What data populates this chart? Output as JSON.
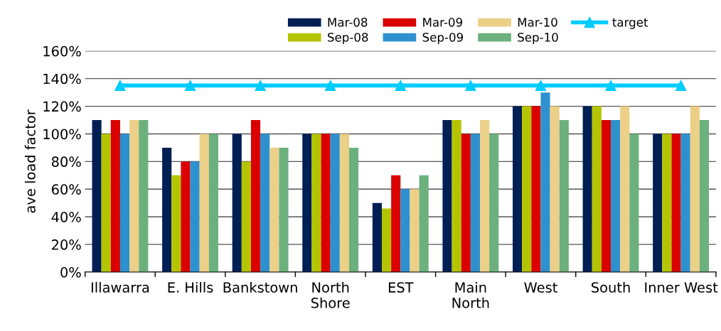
{
  "chart_data": {
    "type": "bar",
    "ylabel": "ave load factor",
    "categories": [
      "Illawarra",
      "E. Hills",
      "Bankstown",
      "North\nShore",
      "EST",
      "Main\nNorth",
      "West",
      "South",
      "Inner West"
    ],
    "series": [
      {
        "name": "Mar-08",
        "color": "#001f54",
        "values": [
          110,
          90,
          100,
          100,
          50,
          110,
          120,
          120,
          100
        ]
      },
      {
        "name": "Sep-08",
        "color": "#b5c400",
        "values": [
          100,
          70,
          80,
          100,
          46,
          110,
          120,
          120,
          100
        ]
      },
      {
        "name": "Mar-09",
        "color": "#db0000",
        "values": [
          110,
          80,
          110,
          100,
          70,
          100,
          120,
          110,
          100
        ]
      },
      {
        "name": "Sep-09",
        "color": "#2e91cf",
        "values": [
          100,
          80,
          100,
          100,
          60,
          100,
          130,
          110,
          100
        ]
      },
      {
        "name": "Mar-10",
        "color": "#ecd087",
        "values": [
          110,
          100,
          90,
          100,
          60,
          110,
          120,
          120,
          120
        ]
      },
      {
        "name": "Sep-10",
        "color": "#6cb07e",
        "values": [
          110,
          100,
          90,
          90,
          70,
          100,
          110,
          100,
          110
        ]
      },
      {
        "name": "target",
        "type": "line",
        "color": "#00ccff",
        "marker": "triangle",
        "values": [
          135,
          135,
          135,
          135,
          135,
          135,
          135,
          135,
          135
        ]
      }
    ],
    "ylim": [
      0,
      160
    ],
    "yticks": [
      {
        "value": 0,
        "label": "0%"
      },
      {
        "value": 20,
        "label": "20%"
      },
      {
        "value": 40,
        "label": "40%"
      },
      {
        "value": 60,
        "label": "60%"
      },
      {
        "value": 80,
        "label": "80%"
      },
      {
        "value": 100,
        "label": "100%"
      },
      {
        "value": 120,
        "label": "120%"
      },
      {
        "value": 140,
        "label": "140%"
      },
      {
        "value": 160,
        "label": "160%"
      }
    ],
    "grid": "y",
    "legend": "top"
  }
}
